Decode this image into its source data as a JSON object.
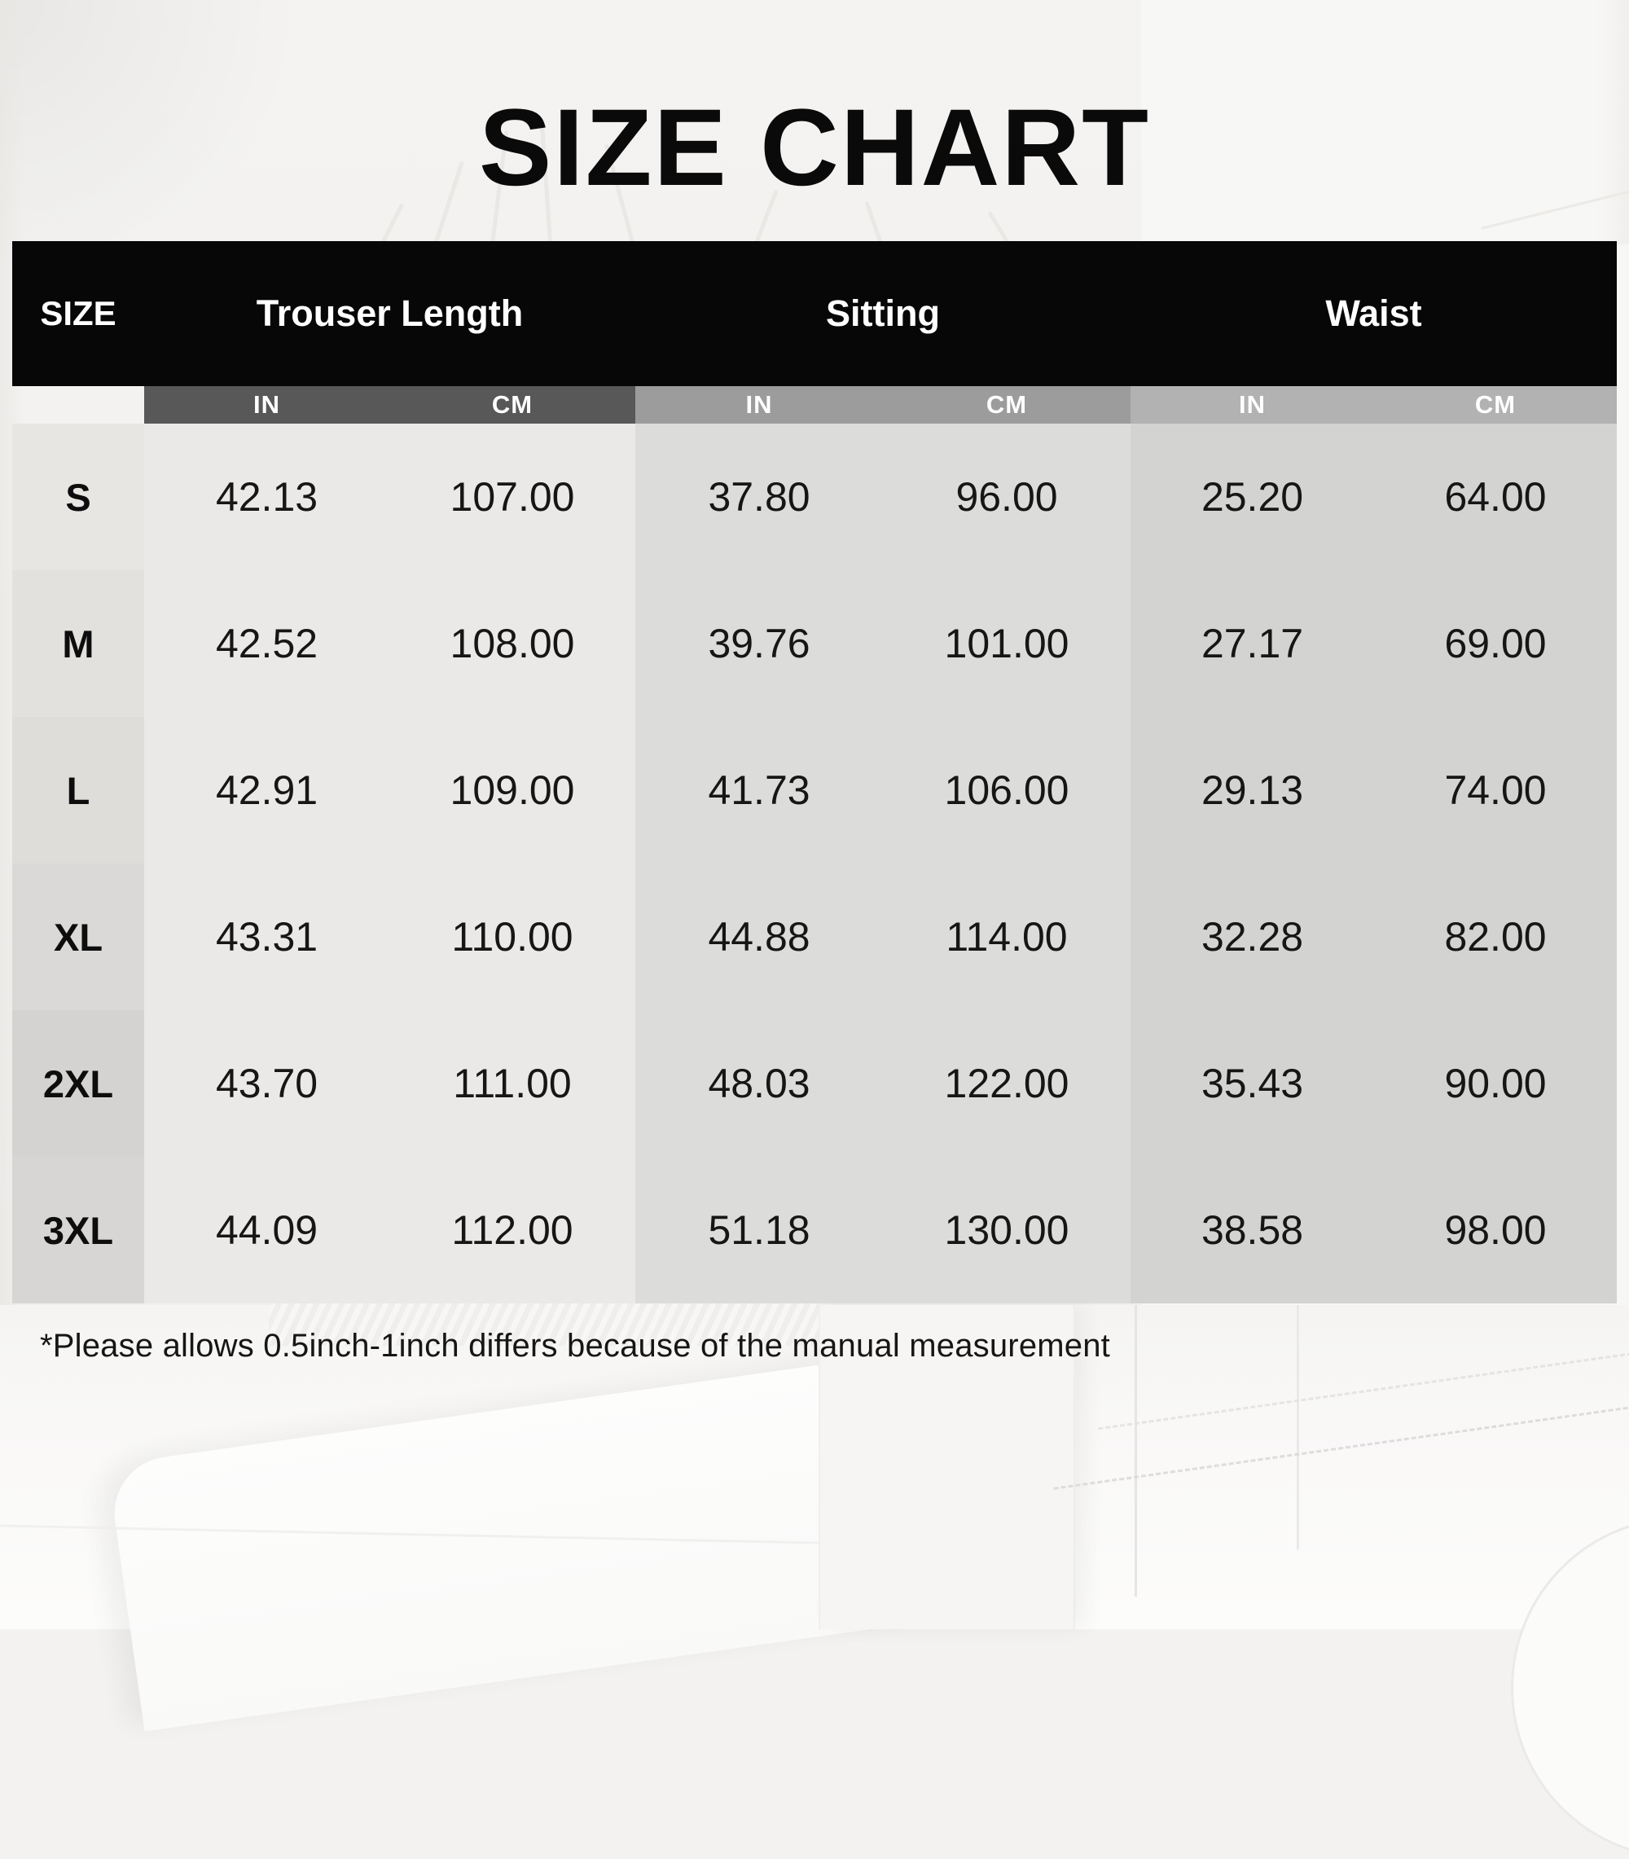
{
  "title": "SIZE CHART",
  "table": {
    "headers": [
      "SIZE",
      "Trouser Length",
      "Sitting",
      "Waist"
    ],
    "unit_headers": [
      "IN",
      "CM",
      "IN",
      "CM",
      "IN",
      "CM"
    ],
    "rows": [
      {
        "size": "S",
        "values": [
          "42.13",
          "107.00",
          "37.80",
          "96.00",
          "25.20",
          "64.00"
        ]
      },
      {
        "size": "M",
        "values": [
          "42.52",
          "108.00",
          "39.76",
          "101.00",
          "27.17",
          "69.00"
        ]
      },
      {
        "size": "L",
        "values": [
          "42.91",
          "109.00",
          "41.73",
          "106.00",
          "29.13",
          "74.00"
        ]
      },
      {
        "size": "XL",
        "values": [
          "43.31",
          "110.00",
          "44.88",
          "114.00",
          "32.28",
          "82.00"
        ]
      },
      {
        "size": "2XL",
        "values": [
          "43.70",
          "111.00",
          "48.03",
          "122.00",
          "35.43",
          "90.00"
        ]
      },
      {
        "size": "3XL",
        "values": [
          "44.09",
          "112.00",
          "51.18",
          "130.00",
          "38.58",
          "98.00"
        ]
      }
    ]
  },
  "note": "*Please allows 0.5inch-1inch differs because of the manual measurement",
  "colors": {
    "header_bg": "#070707",
    "header_text": "#ffffff",
    "subheader_trouser": "#585858",
    "subheader_sitting": "#9c9c9c",
    "subheader_waist": "#b2b2b2",
    "body_trouser": "#ebe9e7",
    "body_sitting": "#dcdcdb",
    "body_waist": "#d3d3d2",
    "title_text": "#0a0a0a"
  },
  "chart_data": {
    "type": "table",
    "title": "SIZE CHART",
    "columns": [
      "SIZE",
      "Trouser Length IN",
      "Trouser Length CM",
      "Sitting IN",
      "Sitting CM",
      "Waist IN",
      "Waist CM"
    ],
    "rows": [
      [
        "S",
        42.13,
        107.0,
        37.8,
        96.0,
        25.2,
        64.0
      ],
      [
        "M",
        42.52,
        108.0,
        39.76,
        101.0,
        27.17,
        69.0
      ],
      [
        "L",
        42.91,
        109.0,
        41.73,
        106.0,
        29.13,
        74.0
      ],
      [
        "XL",
        43.31,
        110.0,
        44.88,
        114.0,
        32.28,
        82.0
      ],
      [
        "2XL",
        43.7,
        111.0,
        48.03,
        122.0,
        35.43,
        90.0
      ],
      [
        "3XL",
        44.09,
        112.0,
        51.18,
        130.0,
        38.58,
        98.0
      ]
    ]
  }
}
